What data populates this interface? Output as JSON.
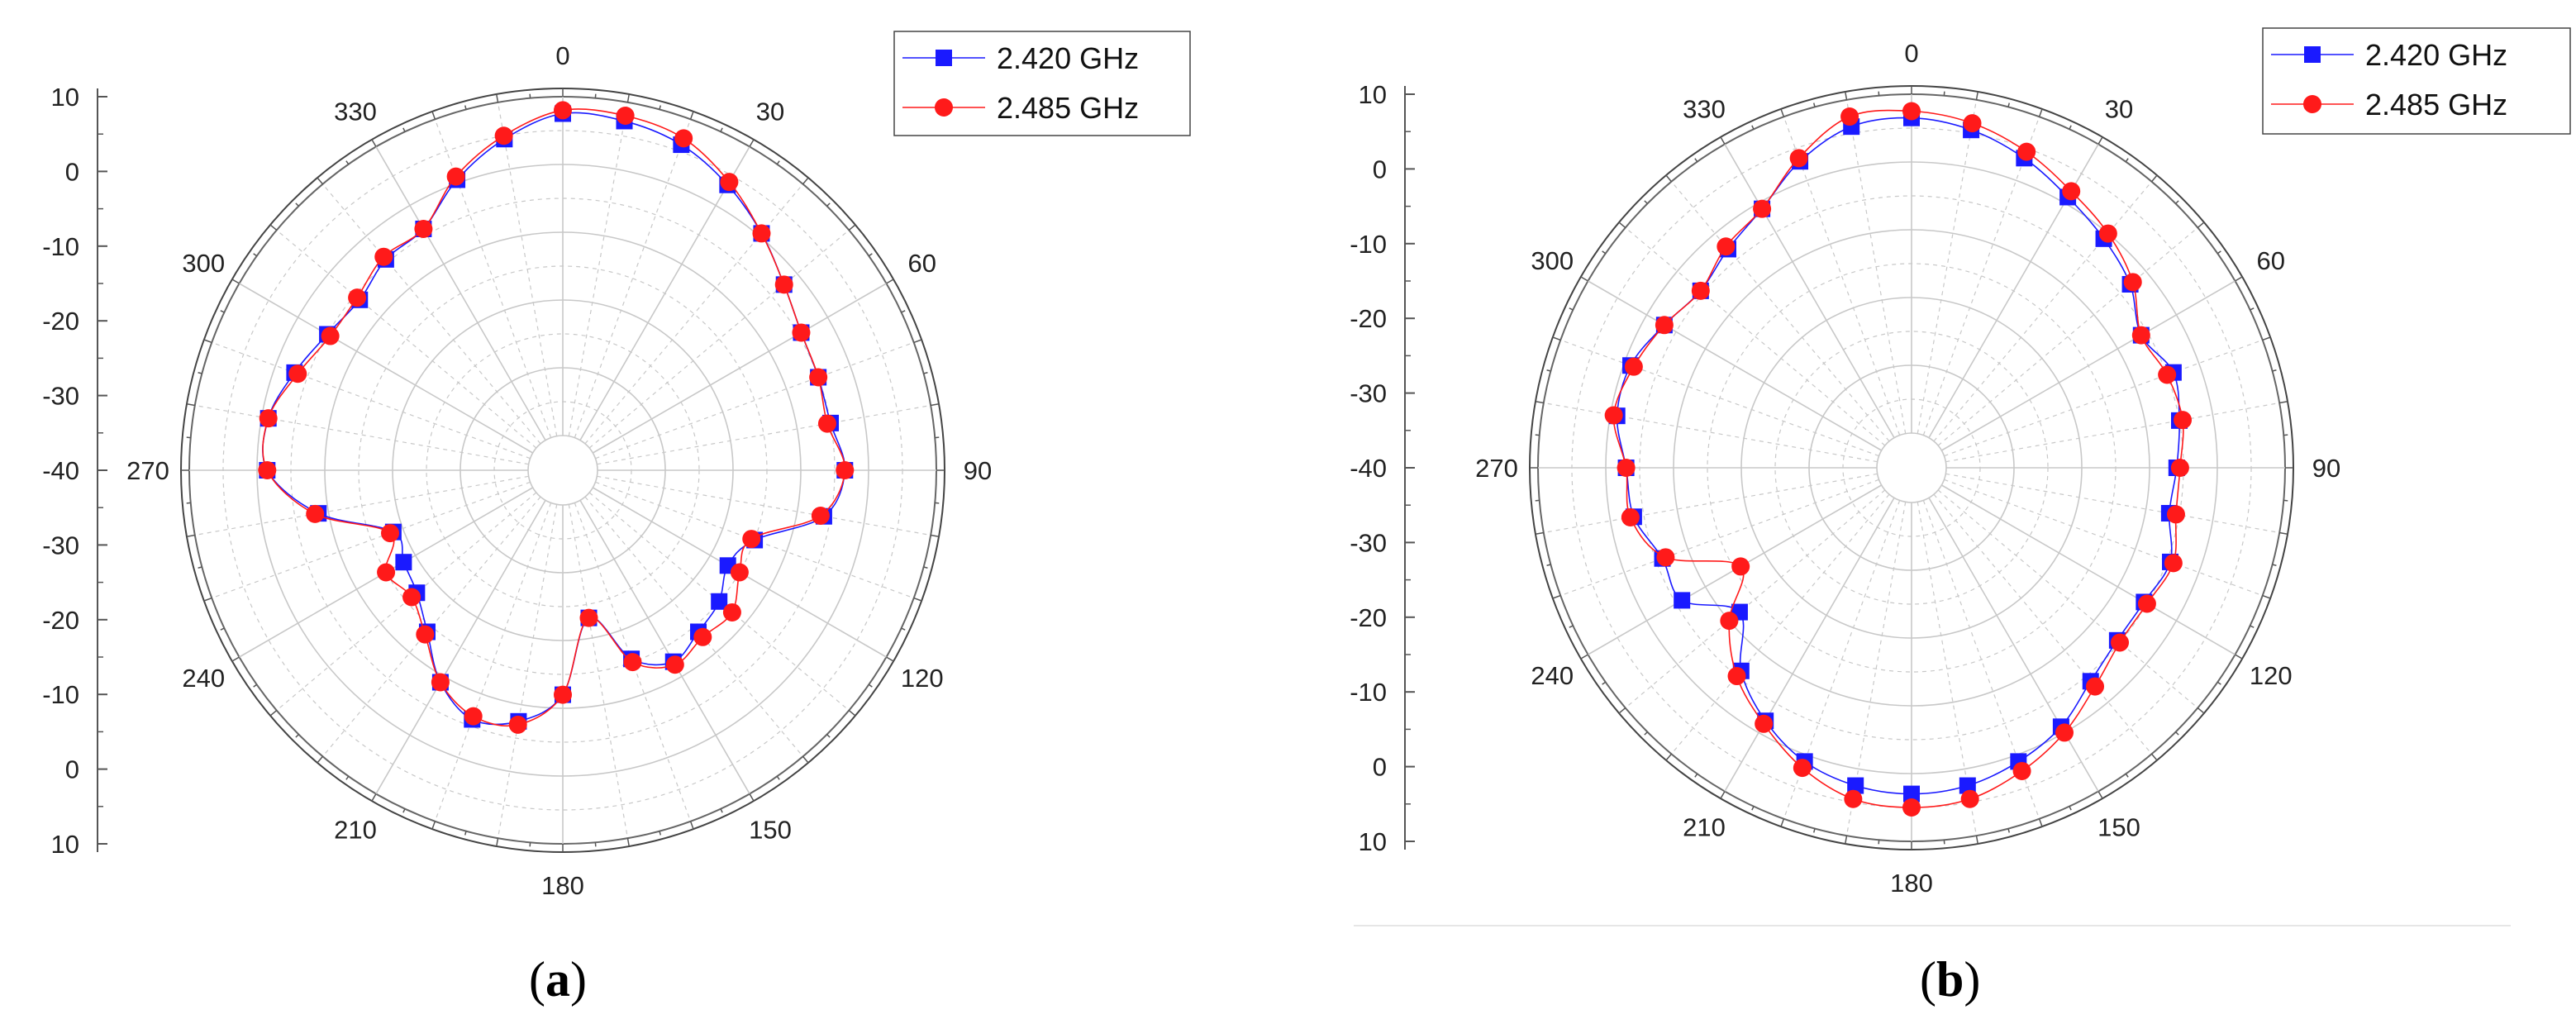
{
  "panels": [
    {
      "caption_letter": "a",
      "caption_open": "(",
      "caption_close": ")"
    },
    {
      "caption_letter": "b",
      "caption_open": "(",
      "caption_close": ")"
    }
  ],
  "chart_data": [
    {
      "type": "polar-line",
      "title": "",
      "angle_labels": [
        "0",
        "30",
        "60",
        "90",
        "120",
        "150",
        "180",
        "210",
        "240",
        "270",
        "300",
        "330"
      ],
      "radial_ticks": [
        "10",
        "0",
        "-10",
        "-20",
        "-30",
        "-40",
        "-30",
        "-20",
        "-10",
        "0",
        "10"
      ],
      "r_range": [
        -40,
        10
      ],
      "grid": true,
      "legend_position": "top-right",
      "colors": {
        "s1": "#1a1aff",
        "s2": "#ff1a1a",
        "grid": "#c8c8c8",
        "axis": "#555555"
      },
      "series": [
        {
          "name": "2.420 GHz",
          "marker": "square",
          "theta": [
            0,
            10,
            20,
            30,
            40,
            50,
            60,
            70,
            80,
            90,
            100,
            110,
            120,
            130,
            140,
            150,
            160,
            170,
            180,
            190,
            200,
            210,
            220,
            230,
            240,
            250,
            260,
            270,
            280,
            290,
            300,
            310,
            320,
            330,
            340,
            350
          ],
          "r": [
            7.5,
            7.2,
            6,
            3.5,
            0.5,
            -2.5,
            -4.5,
            -5,
            -5,
            -3.5,
            -6,
            -15,
            -17,
            -15,
            -14,
            -12.5,
            -15.5,
            -23,
            -12,
            -7.5,
            -6,
            -9,
            -14,
            -17,
            -18,
            -18.5,
            -8.5,
            -1.5,
            -1,
            -3,
            -5,
            -6,
            -4.5,
            -4,
            0.5,
            4.5
          ]
        },
        {
          "name": "2.485 GHz",
          "marker": "circle",
          "theta": [
            0,
            10,
            20,
            30,
            40,
            50,
            60,
            70,
            80,
            90,
            100,
            110,
            120,
            130,
            140,
            150,
            160,
            170,
            180,
            190,
            200,
            210,
            220,
            230,
            240,
            250,
            260,
            270,
            280,
            290,
            300,
            310,
            320,
            330,
            340,
            350
          ],
          "r": [
            8,
            8,
            7,
            4,
            0.5,
            -2.5,
            -4.5,
            -5,
            -5.5,
            -3.5,
            -6.5,
            -15.5,
            -15,
            -12.5,
            -13,
            -12,
            -15,
            -23,
            -12,
            -7,
            -6.5,
            -9,
            -13.5,
            -16,
            -15,
            -18,
            -8,
            -1.5,
            -1,
            -3.5,
            -5.5,
            -5.5,
            -4,
            -4,
            1,
            5
          ]
        }
      ]
    },
    {
      "type": "polar-line",
      "title": "",
      "angle_labels": [
        "0",
        "30",
        "60",
        "90",
        "120",
        "150",
        "180",
        "210",
        "240",
        "270",
        "300",
        "330"
      ],
      "radial_ticks": [
        "10",
        "0",
        "-10",
        "-20",
        "-30",
        "-40",
        "-30",
        "-20",
        "-10",
        "0",
        "10"
      ],
      "r_range": [
        -40,
        10
      ],
      "grid": true,
      "legend_position": "top-right",
      "colors": {
        "s1": "#1a1aff",
        "s2": "#ff1a1a",
        "grid": "#c8c8c8",
        "axis": "#555555"
      },
      "series": [
        {
          "name": "2.420 GHz",
          "marker": "square",
          "theta": [
            0,
            10,
            20,
            30,
            40,
            50,
            60,
            70,
            80,
            90,
            100,
            110,
            120,
            130,
            140,
            150,
            160,
            170,
            180,
            190,
            200,
            210,
            220,
            230,
            240,
            250,
            260,
            270,
            280,
            290,
            300,
            310,
            320,
            330,
            340,
            350
          ],
          "r": [
            6.5,
            5.5,
            3.5,
            1,
            -1,
            -3,
            -6,
            -4,
            -5,
            -6,
            -6.5,
            -4.5,
            -5.5,
            -5.5,
            -4,
            -1,
            1,
            2.5,
            3,
            2.5,
            1,
            -2,
            -6,
            -12,
            -6,
            -6,
            -3.5,
            -3,
            -1,
            -1,
            -3,
            -4.5,
            -3,
            -1,
            3,
            6
          ]
        },
        {
          "name": "2.485 GHz",
          "marker": "circle",
          "theta": [
            0,
            10,
            20,
            30,
            40,
            50,
            60,
            70,
            80,
            90,
            100,
            110,
            120,
            130,
            140,
            150,
            160,
            170,
            180,
            190,
            200,
            210,
            220,
            230,
            240,
            250,
            260,
            270,
            280,
            290,
            300,
            310,
            320,
            330,
            340,
            350
          ],
          "r": [
            7.5,
            6.5,
            4.5,
            2,
            0,
            -2.5,
            -6,
            -5,
            -4.5,
            -5.5,
            -5.5,
            -4,
            -5,
            -5,
            -3,
            0,
            2.5,
            4.5,
            5,
            4.5,
            2,
            -1.5,
            -5,
            -10,
            -16,
            -6.5,
            -3,
            -3,
            -0.5,
            -1.5,
            -3,
            -4.5,
            -2.5,
            -1,
            3.5,
            7.5
          ]
        }
      ]
    }
  ]
}
